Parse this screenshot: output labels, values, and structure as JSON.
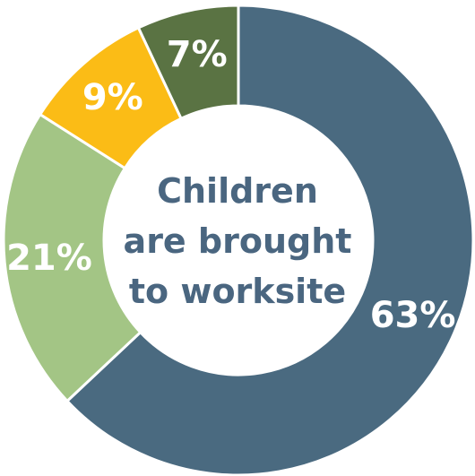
{
  "chart_data": {
    "type": "pie",
    "donut": true,
    "center_label": [
      "Children",
      "are brought",
      "to worksite"
    ],
    "slices": [
      {
        "label": "63%",
        "value": 63,
        "color": "#4a6a80"
      },
      {
        "label": "21%",
        "value": 21,
        "color": "#a3c585"
      },
      {
        "label": "9%",
        "value": 9,
        "color": "#fbbc16"
      },
      {
        "label": "7%",
        "value": 7,
        "color": "#5a7343"
      }
    ],
    "start_angle_deg": 0,
    "direction": "clockwise"
  }
}
